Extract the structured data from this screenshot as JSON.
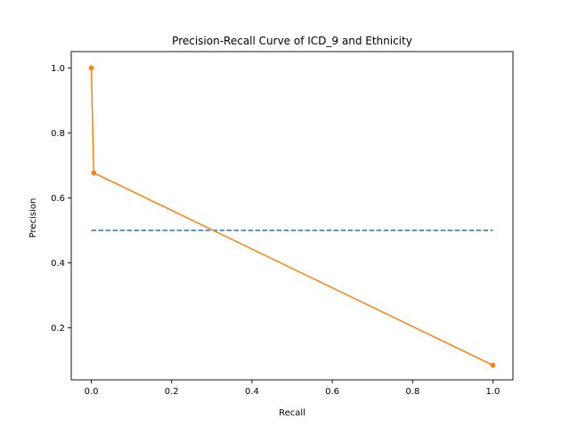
{
  "chart_data": {
    "type": "line",
    "title": "Precision-Recall Curve of ICD_9 and Ethnicity",
    "xlabel": "Recall",
    "ylabel": "Precision",
    "xlim": [
      -0.05,
      1.05
    ],
    "ylim": [
      0.04,
      1.05
    ],
    "xticks": [
      0.0,
      0.2,
      0.4,
      0.6,
      0.8,
      1.0
    ],
    "yticks": [
      0.2,
      0.4,
      0.6,
      0.8,
      1.0
    ],
    "xtick_labels": [
      "0.0",
      "0.2",
      "0.4",
      "0.6",
      "0.8",
      "1.0"
    ],
    "ytick_labels": [
      "0.2",
      "0.4",
      "0.6",
      "0.8",
      "1.0"
    ],
    "grid": false,
    "series": [
      {
        "style": "dashed",
        "color": "#1f77b4",
        "markers": false,
        "x": [
          0.0,
          1.0
        ],
        "y": [
          0.5,
          0.5
        ]
      },
      {
        "style": "solid",
        "color": "#ff7f0e",
        "markers": true,
        "x": [
          0.0,
          0.006,
          1.0
        ],
        "y": [
          1.0,
          0.677,
          0.085
        ]
      }
    ]
  }
}
